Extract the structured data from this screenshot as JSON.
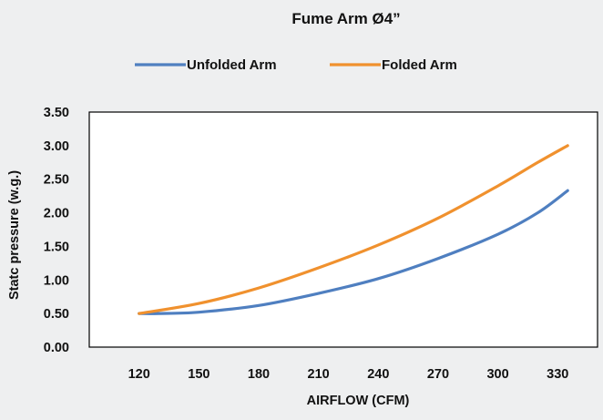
{
  "chart_data": {
    "type": "line",
    "title": "Fume Arm Ø4”",
    "xlabel": "AIRFLOW (CFM)",
    "ylabel": "Statc pressure (w.g.)",
    "xlim": [
      95,
      350
    ],
    "ylim": [
      0,
      3.5
    ],
    "x_ticks": [
      120,
      150,
      180,
      210,
      240,
      270,
      300,
      330
    ],
    "y_ticks": [
      0.0,
      0.5,
      1.0,
      1.5,
      2.0,
      2.5,
      3.0,
      3.5
    ],
    "x_tick_labels": [
      "120",
      "150",
      "180",
      "210",
      "240",
      "270",
      "300",
      "330"
    ],
    "y_tick_labels": [
      "0.00",
      "0.50",
      "1.00",
      "1.50",
      "2.00",
      "2.50",
      "3.00",
      "3.50"
    ],
    "grid": false,
    "legend_position": "top",
    "series": [
      {
        "name": "Unfolded Arm",
        "color": "#4f7fc0",
        "x": [
          120,
          130,
          150,
          180,
          210,
          240,
          270,
          300,
          320,
          335
        ],
        "values": [
          0.5,
          0.5,
          0.52,
          0.62,
          0.8,
          1.02,
          1.32,
          1.68,
          2.0,
          2.33
        ]
      },
      {
        "name": "Folded Arm",
        "color": "#f0912e",
        "x": [
          120,
          150,
          180,
          210,
          240,
          270,
          300,
          320,
          335
        ],
        "values": [
          0.5,
          0.65,
          0.88,
          1.18,
          1.52,
          1.92,
          2.4,
          2.75,
          3.0
        ]
      }
    ]
  }
}
